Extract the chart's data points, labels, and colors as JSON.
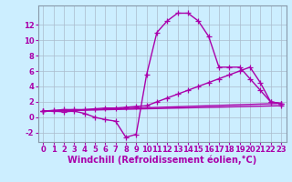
{
  "background_color": "#cceeff",
  "line_color": "#aa00aa",
  "marker": "+",
  "markersize": 4,
  "linewidth": 1.0,
  "xlabel": "Windchill (Refroidissement éolien,°C)",
  "xlabel_fontsize": 7,
  "tick_fontsize": 6,
  "xlim": [
    -0.5,
    23.5
  ],
  "ylim": [
    -3.2,
    14.5
  ],
  "xticks": [
    0,
    1,
    2,
    3,
    4,
    5,
    6,
    7,
    8,
    9,
    10,
    11,
    12,
    13,
    14,
    15,
    16,
    17,
    18,
    19,
    20,
    21,
    22,
    23
  ],
  "yticks": [
    -2,
    0,
    2,
    4,
    6,
    8,
    10,
    12
  ],
  "grid_color": "#aabbcc",
  "series": [
    {
      "x": [
        0,
        1,
        2,
        3,
        4,
        5,
        6,
        7,
        8,
        9,
        10,
        11,
        12,
        13,
        14,
        15,
        16,
        17,
        18,
        19,
        20,
        21,
        22,
        23
      ],
      "y": [
        0.8,
        0.8,
        0.7,
        0.8,
        0.5,
        0.0,
        -0.3,
        -0.5,
        -2.6,
        -2.2,
        5.5,
        11.0,
        12.5,
        13.5,
        13.5,
        12.5,
        10.5,
        6.5,
        6.5,
        6.5,
        5.0,
        3.5,
        2.0,
        1.8
      ]
    },
    {
      "x": [
        0,
        1,
        2,
        3,
        4,
        5,
        6,
        7,
        8,
        9,
        10,
        11,
        12,
        13,
        14,
        15,
        16,
        17,
        18,
        19,
        20,
        21,
        22,
        23
      ],
      "y": [
        0.8,
        0.9,
        1.0,
        1.0,
        1.0,
        1.1,
        1.2,
        1.2,
        1.3,
        1.4,
        1.5,
        2.0,
        2.5,
        3.0,
        3.5,
        4.0,
        4.5,
        5.0,
        5.5,
        6.0,
        6.5,
        4.5,
        2.0,
        1.8
      ]
    },
    {
      "x": [
        0,
        23
      ],
      "y": [
        0.8,
        1.8
      ]
    },
    {
      "x": [
        0,
        23
      ],
      "y": [
        0.8,
        1.5
      ]
    }
  ]
}
